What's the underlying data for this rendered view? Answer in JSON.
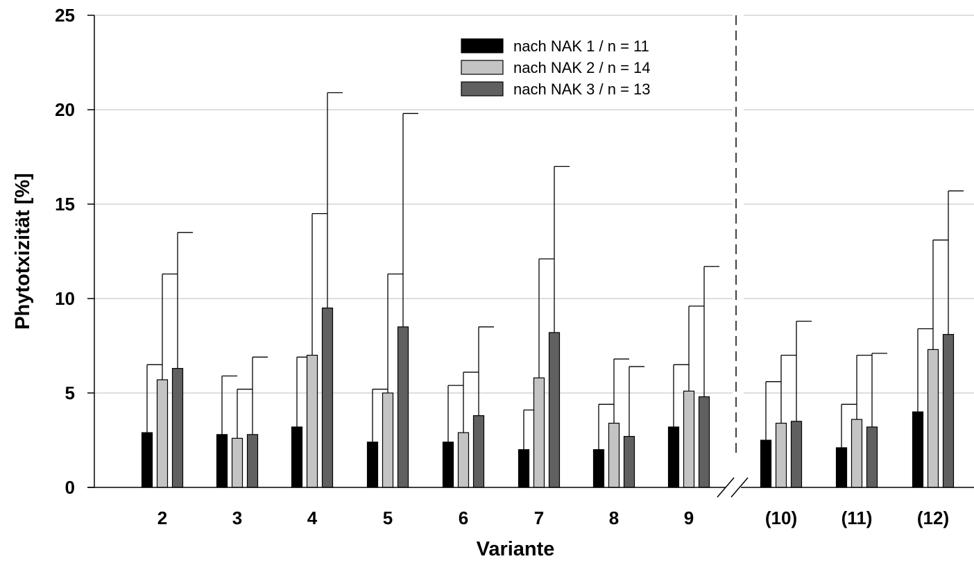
{
  "chart_data": {
    "type": "bar",
    "xlabel": "Variante",
    "ylabel": "Phytotxizität [%]",
    "ylim": [
      0,
      25
    ],
    "yticks": [
      "0",
      "5",
      "10",
      "15",
      "20",
      "25"
    ],
    "grid": "horizontal",
    "legend_position": "top-center",
    "axis_break": "between 9 and (10)",
    "categories": [
      "2",
      "3",
      "4",
      "5",
      "6",
      "7",
      "8",
      "9",
      "(10)",
      "(11)",
      "(12)"
    ],
    "series": [
      {
        "name": "nach NAK 1 / n = 11",
        "color": "#000000",
        "values": [
          2.9,
          2.8,
          3.2,
          2.4,
          2.4,
          2.0,
          2.0,
          3.2,
          2.5,
          2.1,
          4.0
        ],
        "error_upper": [
          6.5,
          5.9,
          6.9,
          5.2,
          5.4,
          4.1,
          4.4,
          6.5,
          5.6,
          4.4,
          8.4
        ]
      },
      {
        "name": "nach NAK 2 / n = 14",
        "color": "#c4c4c4",
        "values": [
          5.7,
          2.6,
          7.0,
          5.0,
          2.9,
          5.8,
          3.4,
          5.1,
          3.4,
          3.6,
          7.3
        ],
        "error_upper": [
          11.3,
          5.2,
          14.5,
          11.3,
          6.1,
          12.1,
          6.8,
          9.6,
          7.0,
          7.0,
          13.1
        ]
      },
      {
        "name": "nach NAK 3 / n = 13",
        "color": "#606060",
        "values": [
          6.3,
          2.8,
          9.5,
          8.5,
          3.8,
          8.2,
          2.7,
          4.8,
          3.5,
          3.2,
          8.1
        ],
        "error_upper": [
          13.5,
          6.9,
          20.9,
          19.8,
          8.5,
          17.0,
          6.4,
          11.7,
          8.8,
          7.1,
          15.7
        ]
      }
    ]
  }
}
